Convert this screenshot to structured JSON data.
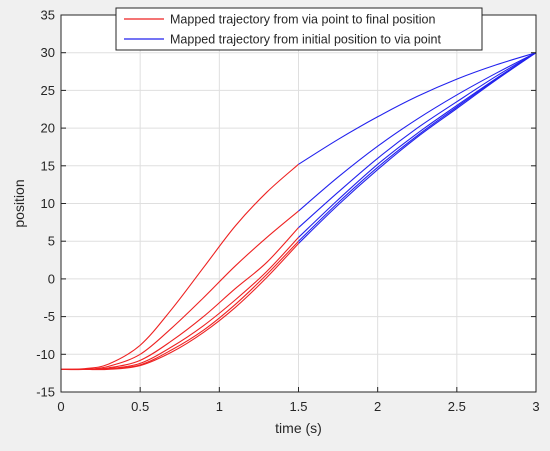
{
  "chart_data": {
    "type": "line",
    "title": "",
    "xlabel": "time (s)",
    "ylabel": "position",
    "xlim": [
      0,
      3
    ],
    "ylim": [
      -15,
      35
    ],
    "xticks": [
      0,
      0.5,
      1,
      1.5,
      2,
      2.5,
      3
    ],
    "xtick_labels": [
      "0",
      "0.5",
      "1",
      "1.5",
      "2",
      "2.5",
      "3"
    ],
    "yticks": [
      -15,
      -10,
      -5,
      0,
      5,
      10,
      15,
      20,
      25,
      30,
      35
    ],
    "ytick_labels": [
      "-15",
      "-10",
      "-5",
      "0",
      "5",
      "10",
      "15",
      "20",
      "25",
      "30",
      "35"
    ],
    "grid": true,
    "legend_position": "top-center",
    "colors": {
      "red": "#ee2222",
      "blue": "#2222ee",
      "axes_bg": "#ffffff",
      "grid": "#dfdfdf",
      "axis": "#262626"
    },
    "legend": [
      {
        "label": "Mapped trajectory from via point to final position",
        "color": "#ee2222"
      },
      {
        "label": "Mapped trajectory from initial position to via point",
        "color": "#2222ee"
      }
    ],
    "series": [
      {
        "color": "#ee2222",
        "x": [
          0,
          0.15,
          0.3,
          0.5,
          0.7,
          0.9,
          1.1,
          1.3,
          1.5
        ],
        "y": [
          -12,
          -11.9,
          -11.3,
          -8.8,
          -4,
          1.5,
          7,
          11.5,
          15.2
        ]
      },
      {
        "color": "#ee2222",
        "x": [
          0,
          0.15,
          0.3,
          0.5,
          0.7,
          0.9,
          1.1,
          1.3,
          1.5
        ],
        "y": [
          -12,
          -12,
          -11.6,
          -10,
          -6.5,
          -2.5,
          1.7,
          5.5,
          9
        ]
      },
      {
        "color": "#ee2222",
        "x": [
          0,
          0.15,
          0.3,
          0.5,
          0.7,
          0.9,
          1.1,
          1.3,
          1.5
        ],
        "y": [
          -12,
          -12,
          -11.8,
          -10.8,
          -8.2,
          -5,
          -1.3,
          2.2,
          6.8
        ]
      },
      {
        "color": "#ee2222",
        "x": [
          0,
          0.15,
          0.3,
          0.5,
          0.7,
          0.9,
          1.1,
          1.3,
          1.5
        ],
        "y": [
          -12,
          -12,
          -11.9,
          -11.2,
          -9,
          -6.2,
          -2.8,
          1,
          5.5
        ]
      },
      {
        "color": "#ee2222",
        "x": [
          0,
          0.15,
          0.3,
          0.5,
          0.7,
          0.9,
          1.1,
          1.3,
          1.5
        ],
        "y": [
          -12,
          -12,
          -11.9,
          -11.4,
          -9.4,
          -6.8,
          -3.4,
          0.6,
          5
        ]
      },
      {
        "color": "#ee2222",
        "x": [
          0,
          0.15,
          0.3,
          0.5,
          0.7,
          0.9,
          1.1,
          1.3,
          1.5
        ],
        "y": [
          -12,
          -12,
          -12,
          -11.5,
          -9.7,
          -7.1,
          -3.8,
          0.2,
          4.7
        ]
      },
      {
        "color": "#2222ee",
        "x": [
          1.5,
          1.75,
          2,
          2.25,
          2.5,
          2.75,
          3
        ],
        "y": [
          15.2,
          18.5,
          21.5,
          24.2,
          26.5,
          28.4,
          30
        ]
      },
      {
        "color": "#2222ee",
        "x": [
          1.5,
          1.75,
          2,
          2.25,
          2.5,
          2.75,
          3
        ],
        "y": [
          9,
          13.5,
          17.6,
          21.2,
          24.4,
          27.3,
          30
        ]
      },
      {
        "color": "#2222ee",
        "x": [
          1.5,
          1.75,
          2,
          2.25,
          2.5,
          2.75,
          3
        ],
        "y": [
          6.8,
          11.5,
          16,
          20,
          23.5,
          26.9,
          30
        ]
      },
      {
        "color": "#2222ee",
        "x": [
          1.5,
          1.75,
          2,
          2.25,
          2.5,
          2.75,
          3
        ],
        "y": [
          5.5,
          10.5,
          15.2,
          19.3,
          23,
          26.6,
          30
        ]
      },
      {
        "color": "#2222ee",
        "x": [
          1.5,
          1.75,
          2,
          2.25,
          2.5,
          2.75,
          3
        ],
        "y": [
          5,
          10.1,
          14.8,
          19,
          22.8,
          26.5,
          30
        ]
      },
      {
        "color": "#2222ee",
        "x": [
          1.5,
          1.75,
          2,
          2.25,
          2.5,
          2.75,
          3
        ],
        "y": [
          4.7,
          9.8,
          14.5,
          18.8,
          22.6,
          26.4,
          30
        ]
      }
    ]
  }
}
